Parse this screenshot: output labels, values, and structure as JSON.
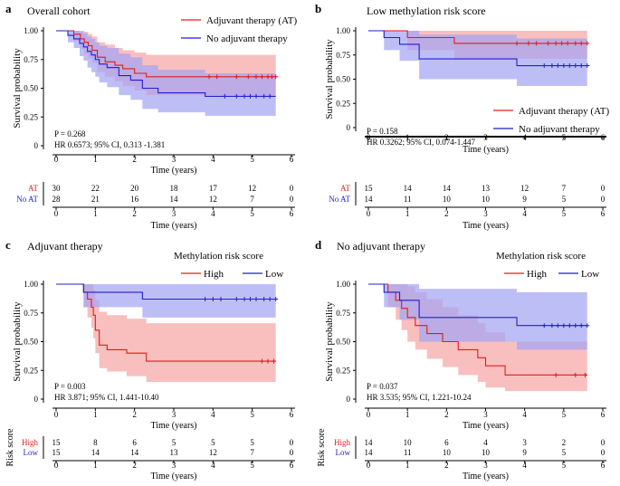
{
  "colors": {
    "red": "#e31a1c",
    "blue": "#1f1fd1",
    "red_ci": "#f7a4a4",
    "blue_ci": "#a3a3f3",
    "overlap_ci": "#a889c4"
  },
  "chart_data": [
    {
      "type": "line",
      "panel_letter": "a",
      "title": "Overall cohort",
      "xlabel": "Time (years)",
      "ylabel": "Survival probability",
      "xlim": [
        0,
        6
      ],
      "ylim": [
        0,
        1
      ],
      "x_ticks": [
        "0",
        "1",
        "2",
        "3",
        "4",
        "5",
        "6"
      ],
      "y_ticks": [
        "0",
        "0.25",
        "0.50",
        "0.75",
        "1.00"
      ],
      "p_value": "P = 0.268",
      "hr_text": "HR 0.6573; 95% CI, 0.313 -1.381",
      "legend_title": "",
      "legend_position": "top-right",
      "risk_table_ylabel": "",
      "risk_times": [
        0,
        1,
        2,
        3,
        4,
        5,
        6
      ],
      "series": [
        {
          "name": "Adjuvant therapy (AT)",
          "color": "#e31a1c",
          "x": [
            0,
            0.45,
            0.62,
            0.72,
            0.82,
            0.92,
            1.05,
            1.25,
            1.5,
            1.7,
            2.0,
            2.3,
            5.6
          ],
          "y": [
            1.0,
            0.97,
            0.93,
            0.9,
            0.87,
            0.83,
            0.77,
            0.73,
            0.7,
            0.67,
            0.63,
            0.6,
            0.6
          ],
          "ci_upper": [
            1.0,
            1.0,
            1.0,
            0.99,
            0.97,
            0.95,
            0.9,
            0.88,
            0.85,
            0.83,
            0.81,
            0.79,
            0.79
          ],
          "ci_lower": [
            1.0,
            0.91,
            0.84,
            0.8,
            0.76,
            0.72,
            0.64,
            0.6,
            0.56,
            0.52,
            0.48,
            0.44,
            0.44
          ],
          "censor_x": [
            3.9,
            4.1,
            4.6,
            4.9,
            5.1,
            5.25,
            5.4,
            5.5,
            5.6
          ],
          "censor_y": 0.6,
          "risk_label": "AT",
          "risk_counts": [
            "30",
            "22",
            "20",
            "18",
            "17",
            "12",
            "0"
          ]
        },
        {
          "name": "No adjuvant therapy",
          "color": "#1f1fd1",
          "x": [
            0,
            0.3,
            0.45,
            0.6,
            0.7,
            0.8,
            0.9,
            1.0,
            1.1,
            1.3,
            1.6,
            1.9,
            2.2,
            2.6,
            3.8,
            5.6
          ],
          "y": [
            1.0,
            0.96,
            0.93,
            0.89,
            0.86,
            0.82,
            0.79,
            0.75,
            0.71,
            0.68,
            0.61,
            0.57,
            0.5,
            0.46,
            0.43,
            0.43
          ],
          "ci_upper": [
            1.0,
            1.0,
            1.0,
            0.99,
            0.98,
            0.95,
            0.93,
            0.9,
            0.87,
            0.85,
            0.8,
            0.77,
            0.7,
            0.66,
            0.63,
            0.63
          ],
          "ci_lower": [
            1.0,
            0.9,
            0.85,
            0.78,
            0.74,
            0.68,
            0.64,
            0.6,
            0.55,
            0.51,
            0.44,
            0.4,
            0.32,
            0.29,
            0.26,
            0.26
          ],
          "censor_x": [
            4.3,
            4.6,
            4.8,
            4.95,
            5.1,
            5.3,
            5.45
          ],
          "censor_y": 0.43,
          "risk_label": "No AT",
          "risk_counts": [
            "28",
            "21",
            "16",
            "14",
            "12",
            "7",
            "0"
          ]
        }
      ]
    },
    {
      "type": "line",
      "panel_letter": "b",
      "title": "Low methylation risk score",
      "xlabel": "Time (years)",
      "ylabel": "Survival probability",
      "xlim": [
        0,
        6
      ],
      "ylim": [
        0,
        1
      ],
      "x_ticks": [
        "0",
        "1",
        "2",
        "3",
        "4",
        "5",
        "6"
      ],
      "y_ticks": [
        "0",
        "0.25",
        "0.50",
        "0.75",
        "1.00"
      ],
      "p_value": "P = 0.158",
      "hr_text": "HR 0.3262; 95% CI, 0.074-1.447",
      "legend_title": "",
      "legend_position": "bottom-right",
      "risk_table_ylabel": "",
      "risk_times": [
        0,
        1,
        2,
        3,
        4,
        5,
        6
      ],
      "series": [
        {
          "name": "Adjuvant therapy (AT)",
          "color": "#e31a1c",
          "x": [
            0,
            1.0,
            2.2,
            5.6
          ],
          "y": [
            1.0,
            0.93,
            0.87,
            0.87
          ],
          "ci_upper": [
            1.0,
            1.0,
            1.0,
            1.0
          ],
          "ci_lower": [
            1.0,
            0.8,
            0.71,
            0.71
          ],
          "censor_x": [
            3.8,
            4.1,
            4.3,
            4.6,
            4.8,
            4.95,
            5.1,
            5.3,
            5.45,
            5.6
          ],
          "censor_y": 0.87,
          "risk_label": "AT",
          "risk_counts": [
            "15",
            "14",
            "14",
            "13",
            "12",
            "7",
            "0"
          ]
        },
        {
          "name": "No adjuvant therapy",
          "color": "#1f1fd1",
          "x": [
            0,
            0.4,
            0.8,
            1.3,
            3.8,
            5.6
          ],
          "y": [
            1.0,
            0.93,
            0.86,
            0.71,
            0.64,
            0.64
          ],
          "ci_upper": [
            1.0,
            1.0,
            1.0,
            0.96,
            0.92,
            0.92
          ],
          "ci_lower": [
            1.0,
            0.8,
            0.69,
            0.5,
            0.43,
            0.43
          ],
          "censor_x": [
            4.5,
            4.7,
            4.85,
            5.0,
            5.15,
            5.3,
            5.45,
            5.6
          ],
          "censor_y": 0.64,
          "risk_label": "No AT",
          "risk_counts": [
            "14",
            "11",
            "10",
            "10",
            "9",
            "5",
            "0"
          ]
        }
      ]
    },
    {
      "type": "line",
      "panel_letter": "c",
      "title": "Adjuvant therapy",
      "xlabel": "Time (years)",
      "ylabel": "Survival probability",
      "xlim": [
        0,
        6
      ],
      "ylim": [
        0,
        1
      ],
      "x_ticks": [
        "0",
        "1",
        "2",
        "3",
        "4",
        "5",
        "6"
      ],
      "y_ticks": [
        "0",
        "0.25",
        "0.50",
        "0.75",
        "1.00"
      ],
      "p_value": "P = 0.003",
      "hr_text": "HR 3.871; 95% CI, 1.441-10.40",
      "legend_title": "Methylation risk score",
      "legend_position": "top-right",
      "risk_table_ylabel": "Risk score",
      "risk_times": [
        0,
        1,
        2,
        3,
        4,
        5,
        6
      ],
      "series": [
        {
          "name": "High",
          "color": "#e31a1c",
          "x": [
            0,
            0.7,
            0.8,
            0.9,
            0.95,
            1.0,
            1.1,
            1.3,
            1.8,
            2.3,
            5.6
          ],
          "y": [
            1.0,
            0.93,
            0.87,
            0.8,
            0.73,
            0.6,
            0.47,
            0.43,
            0.4,
            0.33,
            0.33
          ],
          "ci_upper": [
            1.0,
            1.0,
            1.0,
            1.0,
            0.95,
            0.86,
            0.76,
            0.73,
            0.7,
            0.66,
            0.66
          ],
          "ci_lower": [
            1.0,
            0.8,
            0.71,
            0.62,
            0.53,
            0.4,
            0.27,
            0.24,
            0.2,
            0.15,
            0.15
          ],
          "censor_x": [
            5.25,
            5.4,
            5.55
          ],
          "censor_y": 0.33,
          "risk_label": "High",
          "risk_counts": [
            "15",
            "8",
            "6",
            "5",
            "5",
            "5",
            "0"
          ]
        },
        {
          "name": "Low",
          "color": "#1f1fd1",
          "x": [
            0,
            0.7,
            2.2,
            5.6
          ],
          "y": [
            1.0,
            0.93,
            0.87,
            0.87
          ],
          "ci_upper": [
            1.0,
            1.0,
            1.0,
            1.0
          ],
          "ci_lower": [
            1.0,
            0.8,
            0.71,
            0.71
          ],
          "censor_x": [
            3.8,
            4.0,
            4.2,
            4.6,
            4.8,
            4.95,
            5.1,
            5.3,
            5.45,
            5.6
          ],
          "censor_y": 0.87,
          "risk_label": "Low",
          "risk_counts": [
            "15",
            "14",
            "14",
            "13",
            "12",
            "7",
            "0"
          ]
        }
      ]
    },
    {
      "type": "line",
      "panel_letter": "d",
      "title": "No adjuvant therapy",
      "xlabel": "Time (years)",
      "ylabel": "Survival probability",
      "xlim": [
        0,
        6
      ],
      "ylim": [
        0,
        1
      ],
      "x_ticks": [
        "0",
        "1",
        "2",
        "3",
        "4",
        "5",
        "6"
      ],
      "y_ticks": [
        "0",
        "0.25",
        "0.50",
        "0.75",
        "1.00"
      ],
      "p_value": "P = 0.037",
      "hr_text": "HR 3.535; 95% CI, 1.221-10.24",
      "legend_title": "Methylation risk score",
      "legend_position": "top-right",
      "risk_table_ylabel": "Risk score",
      "risk_times": [
        0,
        1,
        2,
        3,
        4,
        5,
        6
      ],
      "series": [
        {
          "name": "High",
          "color": "#e31a1c",
          "x": [
            0,
            0.5,
            0.7,
            0.85,
            1.0,
            1.2,
            1.5,
            1.9,
            2.3,
            2.8,
            3.0,
            3.5,
            5.6
          ],
          "y": [
            1.0,
            0.93,
            0.86,
            0.79,
            0.71,
            0.64,
            0.57,
            0.5,
            0.43,
            0.36,
            0.29,
            0.21,
            0.21
          ],
          "ci_upper": [
            1.0,
            1.0,
            1.0,
            1.0,
            0.98,
            0.93,
            0.87,
            0.8,
            0.73,
            0.66,
            0.58,
            0.5,
            0.5
          ],
          "ci_lower": [
            1.0,
            0.8,
            0.69,
            0.6,
            0.5,
            0.43,
            0.35,
            0.28,
            0.21,
            0.15,
            0.1,
            0.07,
            0.07
          ],
          "censor_x": [
            4.8,
            5.3,
            5.55
          ],
          "censor_y": 0.21,
          "risk_label": "High",
          "risk_counts": [
            "14",
            "10",
            "6",
            "4",
            "3",
            "2",
            "0"
          ]
        },
        {
          "name": "Low",
          "color": "#1f1fd1",
          "x": [
            0,
            0.4,
            0.8,
            1.3,
            3.8,
            5.6
          ],
          "y": [
            1.0,
            0.93,
            0.86,
            0.71,
            0.64,
            0.64
          ],
          "ci_upper": [
            1.0,
            1.0,
            1.0,
            0.96,
            0.93,
            0.93
          ],
          "ci_lower": [
            1.0,
            0.8,
            0.69,
            0.5,
            0.43,
            0.43
          ],
          "censor_x": [
            4.5,
            4.7,
            4.85,
            5.0,
            5.15,
            5.3,
            5.45,
            5.6
          ],
          "censor_y": 0.64,
          "risk_label": "Low",
          "risk_counts": [
            "14",
            "11",
            "10",
            "10",
            "9",
            "5",
            "0"
          ]
        }
      ]
    }
  ]
}
